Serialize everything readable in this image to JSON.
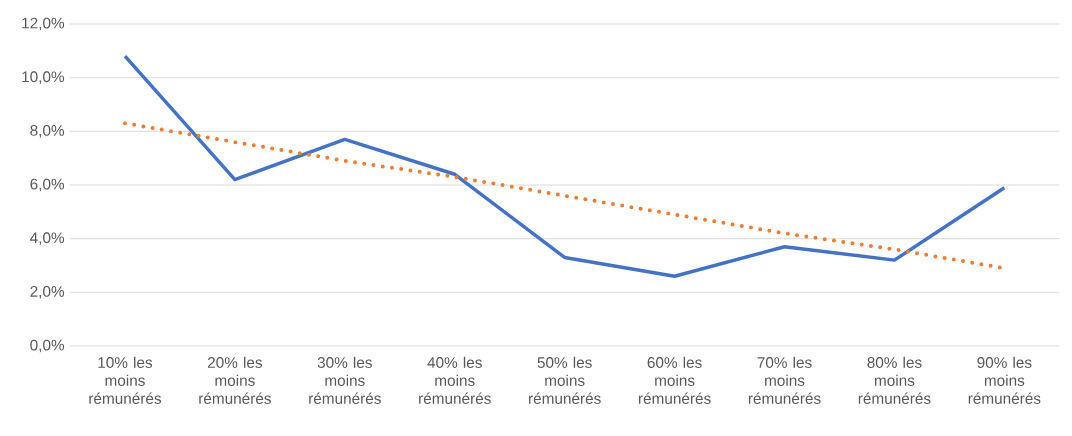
{
  "chart_data": {
    "type": "line",
    "categories": [
      "10% les moins rémunérés",
      "20% les moins rémunérés",
      "30% les moins rémunérés",
      "40% les moins rémunérés",
      "50% les moins rémunérés",
      "60% les moins rémunérés",
      "70% les moins rémunérés",
      "80% les moins rémunérés",
      "90% les moins rémunérés"
    ],
    "series": [
      {
        "color": "#4472c4",
        "values": [
          10.8,
          6.2,
          7.7,
          6.4,
          3.3,
          2.6,
          3.7,
          3.2,
          5.9
        ]
      },
      {
        "color": "#ed7d31",
        "line_style": "dotted",
        "values": [
          8.3,
          7.6,
          6.9,
          6.3,
          5.6,
          4.9,
          4.2,
          3.6,
          2.9
        ]
      }
    ],
    "ylim": [
      0,
      12
    ],
    "yticks": [
      {
        "value": 0,
        "label": "0,0%"
      },
      {
        "value": 2,
        "label": "2,0%"
      },
      {
        "value": 4,
        "label": "4,0%"
      },
      {
        "value": 6,
        "label": "6,0%"
      },
      {
        "value": 8,
        "label": "8,0%"
      },
      {
        "value": 10,
        "label": "10,0%"
      },
      {
        "value": 12,
        "label": "12,0%"
      }
    ],
    "grid": "y",
    "marker": "none"
  }
}
